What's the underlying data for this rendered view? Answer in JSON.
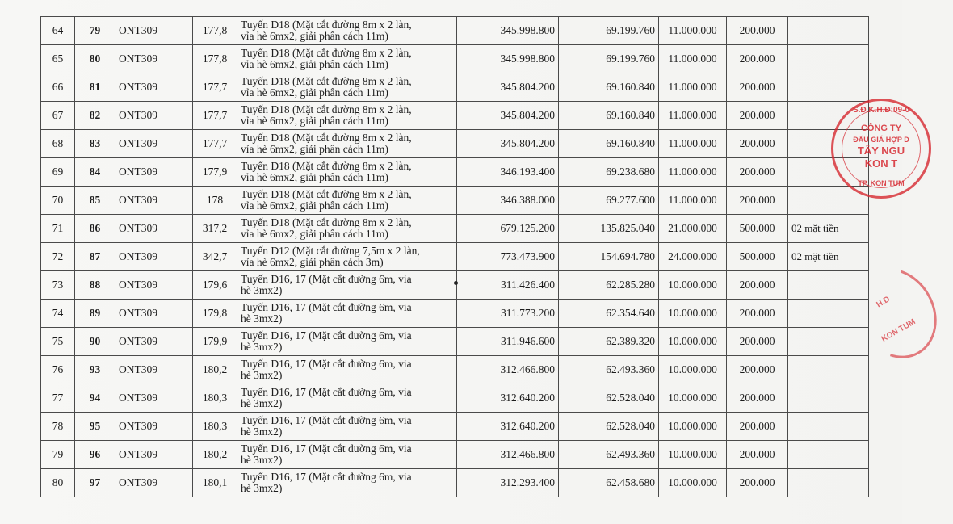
{
  "rows": [
    {
      "stt": "64",
      "lot": "79",
      "type": "ONT309",
      "area": "177,8",
      "desc1": "Tuyến D18 (Mặt cắt đường 8m x 2 làn,",
      "desc2": "vỉa hè 6mx2, giải phân cách 11m)",
      "price": "345.998.800",
      "total": "69.199.760",
      "deposit": "11.000.000",
      "fee": "200.000",
      "note": ""
    },
    {
      "stt": "65",
      "lot": "80",
      "type": "ONT309",
      "area": "177,8",
      "desc1": "Tuyến D18 (Mặt cắt đường 8m x 2 làn,",
      "desc2": "vỉa hè 6mx2, giải phân cách 11m)",
      "price": "345.998.800",
      "total": "69.199.760",
      "deposit": "11.000.000",
      "fee": "200.000",
      "note": ""
    },
    {
      "stt": "66",
      "lot": "81",
      "type": "ONT309",
      "area": "177,7",
      "desc1": "Tuyến D18 (Mặt cắt đường 8m x 2 làn,",
      "desc2": "vỉa hè 6mx2, giải phân cách 11m)",
      "price": "345.804.200",
      "total": "69.160.840",
      "deposit": "11.000.000",
      "fee": "200.000",
      "note": ""
    },
    {
      "stt": "67",
      "lot": "82",
      "type": "ONT309",
      "area": "177,7",
      "desc1": "Tuyến D18 (Mặt cắt đường 8m x 2 làn,",
      "desc2": "vỉa hè 6mx2, giải phân cách 11m)",
      "price": "345.804.200",
      "total": "69.160.840",
      "deposit": "11.000.000",
      "fee": "200.000",
      "note": ""
    },
    {
      "stt": "68",
      "lot": "83",
      "type": "ONT309",
      "area": "177,7",
      "desc1": "Tuyến D18 (Mặt cắt đường 8m x 2 làn,",
      "desc2": "vỉa hè 6mx2, giải phân cách 11m)",
      "price": "345.804.200",
      "total": "69.160.840",
      "deposit": "11.000.000",
      "fee": "200.000",
      "note": ""
    },
    {
      "stt": "69",
      "lot": "84",
      "type": "ONT309",
      "area": "177,9",
      "desc1": "Tuyến D18 (Mặt cắt đường 8m x 2 làn,",
      "desc2": "vỉa hè 6mx2, giải phân cách 11m)",
      "price": "346.193.400",
      "total": "69.238.680",
      "deposit": "11.000.000",
      "fee": "200.000",
      "note": ""
    },
    {
      "stt": "70",
      "lot": "85",
      "type": "ONT309",
      "area": "178",
      "desc1": "Tuyến D18 (Mặt cắt đường 8m x 2 làn,",
      "desc2": "vỉa hè 6mx2, giải phân cách 11m)",
      "price": "346.388.000",
      "total": "69.277.600",
      "deposit": "11.000.000",
      "fee": "200.000",
      "note": ""
    },
    {
      "stt": "71",
      "lot": "86",
      "type": "ONT309",
      "area": "317,2",
      "desc1": "Tuyến D18 (Mặt cắt đường 8m x 2 làn,",
      "desc2": "vỉa hè 6mx2, giải phân cách 11m)",
      "price": "679.125.200",
      "total": "135.825.040",
      "deposit": "21.000.000",
      "fee": "500.000",
      "note": "02 mặt tiền"
    },
    {
      "stt": "72",
      "lot": "87",
      "type": "ONT309",
      "area": "342,7",
      "desc1": "Tuyến D12 (Mặt cắt đường 7,5m x 2 làn,",
      "desc2": "vỉa hè 6mx2, giải phân cách 3m)",
      "price": "773.473.900",
      "total": "154.694.780",
      "deposit": "24.000.000",
      "fee": "500.000",
      "note": "02 mặt tiền"
    },
    {
      "stt": "73",
      "lot": "88",
      "type": "ONT309",
      "area": "179,6",
      "desc1": "Tuyến D16, 17 (Mặt cắt đường 6m, via",
      "desc2": "hè 3mx2)",
      "price": "311.426.400",
      "total": "62.285.280",
      "deposit": "10.000.000",
      "fee": "200.000",
      "note": ""
    },
    {
      "stt": "74",
      "lot": "89",
      "type": "ONT309",
      "area": "179,8",
      "desc1": "Tuyến D16, 17 (Mặt cắt đường 6m, via",
      "desc2": "hè 3mx2)",
      "price": "311.773.200",
      "total": "62.354.640",
      "deposit": "10.000.000",
      "fee": "200.000",
      "note": ""
    },
    {
      "stt": "75",
      "lot": "90",
      "type": "ONT309",
      "area": "179,9",
      "desc1": "Tuyến D16, 17 (Mặt cắt đường 6m, via",
      "desc2": "hè 3mx2)",
      "price": "311.946.600",
      "total": "62.389.320",
      "deposit": "10.000.000",
      "fee": "200.000",
      "note": ""
    },
    {
      "stt": "76",
      "lot": "93",
      "type": "ONT309",
      "area": "180,2",
      "desc1": "Tuyến D16, 17 (Mặt cắt đường 6m, via",
      "desc2": "hè 3mx2)",
      "price": "312.466.800",
      "total": "62.493.360",
      "deposit": "10.000.000",
      "fee": "200.000",
      "note": ""
    },
    {
      "stt": "77",
      "lot": "94",
      "type": "ONT309",
      "area": "180,3",
      "desc1": "Tuyến D16, 17 (Mặt cắt đường 6m, via",
      "desc2": "hè 3mx2)",
      "price": "312.640.200",
      "total": "62.528.040",
      "deposit": "10.000.000",
      "fee": "200.000",
      "note": ""
    },
    {
      "stt": "78",
      "lot": "95",
      "type": "ONT309",
      "area": "180,3",
      "desc1": "Tuyến D16, 17 (Mặt cắt đường 6m, via",
      "desc2": "hè 3mx2)",
      "price": "312.640.200",
      "total": "62.528.040",
      "deposit": "10.000.000",
      "fee": "200.000",
      "note": ""
    },
    {
      "stt": "79",
      "lot": "96",
      "type": "ONT309",
      "area": "180,2",
      "desc1": "Tuyến D16, 17 (Mặt cắt đường 6m, via",
      "desc2": "hè 3mx2)",
      "price": "312.466.800",
      "total": "62.493.360",
      "deposit": "10.000.000",
      "fee": "200.000",
      "note": ""
    },
    {
      "stt": "80",
      "lot": "97",
      "type": "ONT309",
      "area": "180,1",
      "desc1": "Tuyến D16, 17 (Mặt cắt đường 6m, via",
      "desc2": "hè 3mx2)",
      "price": "312.293.400",
      "total": "62.458.680",
      "deposit": "10.000.000",
      "fee": "200.000",
      "note": ""
    }
  ],
  "seal": {
    "code": "S.Đ.K.H.Đ:09-0",
    "line1": "CÔNG TY",
    "line2": "ĐẤU GIÁ HỢP D",
    "line3": "TÂY NGU",
    "line4": "KON T",
    "line5": "TP. KON TUM"
  },
  "seal2": {
    "text1": "H.D",
    "text2": "KON TUM"
  },
  "colors": {
    "seal": "#d62830",
    "border": "#4a4a4a",
    "paper": "#f5f5f3"
  }
}
